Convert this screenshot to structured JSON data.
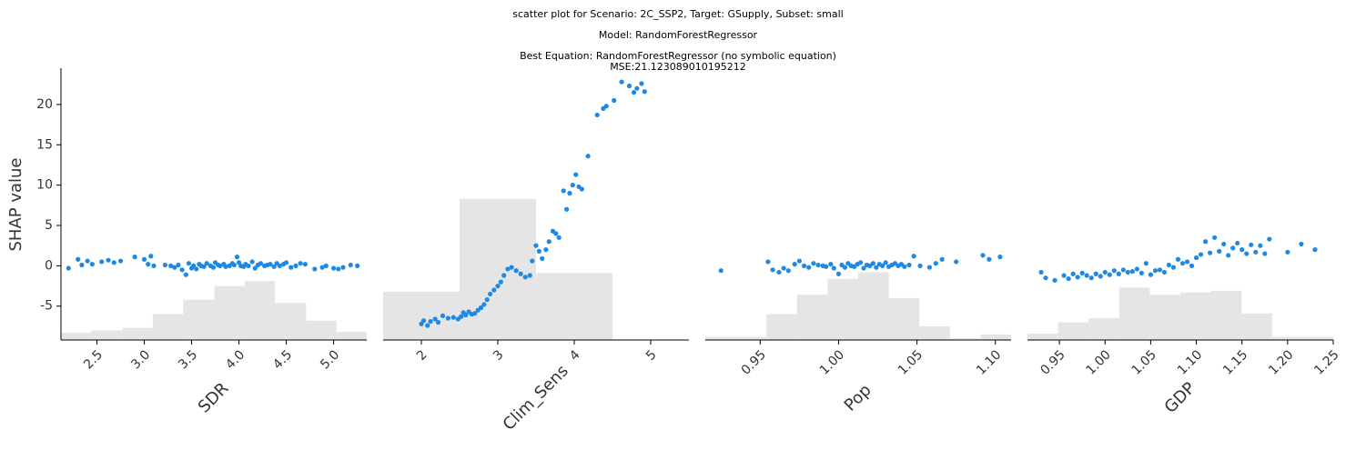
{
  "header": {
    "line1": "scatter plot for Scenario: 2C_SSP2, Target: GSupply, Subset: small",
    "line2": "Model: RandomForestRegressor",
    "line3": "Best Equation: RandomForestRegressor (no symbolic equation)",
    "line4": "MSE:21.123089010195212"
  },
  "colors": {
    "point": "#1e88e5",
    "hist": "#e5e5e5",
    "axis": "#000000"
  },
  "chart_data": {
    "type": "scatter",
    "ylabel": "SHAP value",
    "ylim": [
      -9.2,
      24.5
    ],
    "yticks": [
      -5,
      0,
      5,
      10,
      15,
      20
    ],
    "panels": [
      {
        "xlabel": "SDR",
        "xlim": [
          2.12,
          5.35
        ],
        "xticks": [
          2.5,
          3.0,
          3.5,
          4.0,
          4.5,
          5.0
        ],
        "xtick_labels": [
          "2.5",
          "3.0",
          "3.5",
          "4.0",
          "4.5",
          "5.0"
        ],
        "hist_edges": [
          2.12,
          2.44,
          2.77,
          3.09,
          3.41,
          3.74,
          4.06,
          4.38,
          4.71,
          5.03,
          5.35
        ],
        "hist_tops": [
          -8.3,
          -8.0,
          -7.7,
          -6.0,
          -4.2,
          -2.5,
          -1.9,
          -4.6,
          -6.8,
          -8.2
        ],
        "x": [
          2.2,
          2.3,
          2.34,
          2.4,
          2.45,
          2.55,
          2.62,
          2.68,
          2.75,
          2.9,
          3.0,
          3.04,
          3.07,
          3.1,
          3.22,
          3.28,
          3.32,
          3.36,
          3.4,
          3.44,
          3.47,
          3.5,
          3.52,
          3.55,
          3.58,
          3.6,
          3.63,
          3.66,
          3.7,
          3.73,
          3.75,
          3.78,
          3.8,
          3.84,
          3.86,
          3.9,
          3.93,
          3.95,
          3.98,
          4.0,
          4.02,
          4.05,
          4.07,
          4.1,
          4.14,
          4.17,
          4.2,
          4.23,
          4.27,
          4.3,
          4.33,
          4.37,
          4.4,
          4.43,
          4.47,
          4.5,
          4.55,
          4.6,
          4.65,
          4.7,
          4.8,
          4.88,
          4.92,
          5.0,
          5.05,
          5.1,
          5.18,
          5.25
        ],
        "y": [
          -0.3,
          0.8,
          0.1,
          0.6,
          0.2,
          0.5,
          0.7,
          0.4,
          0.6,
          1.1,
          0.8,
          0.2,
          1.2,
          0.0,
          0.1,
          0.0,
          -0.2,
          0.1,
          -0.5,
          -1.1,
          0.3,
          -0.3,
          0.0,
          -0.4,
          0.2,
          0.0,
          -0.1,
          0.3,
          0.0,
          -0.2,
          0.4,
          0.1,
          0.0,
          0.2,
          -0.1,
          0.0,
          0.3,
          0.1,
          1.1,
          0.4,
          0.0,
          -0.1,
          0.2,
          0.0,
          0.5,
          -0.3,
          0.1,
          0.3,
          0.0,
          0.1,
          0.2,
          -0.1,
          0.3,
          0.0,
          0.2,
          0.4,
          -0.2,
          0.0,
          0.3,
          0.2,
          -0.4,
          -0.2,
          0.0,
          -0.3,
          -0.4,
          -0.2,
          0.1,
          0.0
        ]
      },
      {
        "xlabel": "Clim_Sens",
        "xlim": [
          1.5,
          5.5
        ],
        "xticks": [
          2,
          3,
          4,
          5
        ],
        "xtick_labels": [
          "2",
          "3",
          "4",
          "5"
        ],
        "hist_edges": [
          1.5,
          2.5,
          3.5,
          4.5,
          5.5
        ],
        "hist_tops": [
          -3.2,
          8.3,
          -0.9,
          -9.2
        ],
        "x": [
          2.0,
          2.03,
          2.08,
          2.12,
          2.18,
          2.22,
          2.28,
          2.35,
          2.42,
          2.48,
          2.52,
          2.55,
          2.58,
          2.62,
          2.66,
          2.7,
          2.74,
          2.78,
          2.82,
          2.86,
          2.9,
          2.95,
          3.0,
          3.04,
          3.08,
          3.13,
          3.18,
          3.24,
          3.3,
          3.36,
          3.42,
          3.45,
          3.5,
          3.54,
          3.58,
          3.63,
          3.67,
          3.72,
          3.76,
          3.8,
          3.86,
          3.9,
          3.94,
          3.98,
          4.02,
          4.06,
          4.1,
          4.18,
          4.3,
          4.38,
          4.42,
          4.52,
          4.62,
          4.72,
          4.78,
          4.82,
          4.88,
          4.92
        ],
        "y": [
          -7.2,
          -6.8,
          -7.4,
          -6.9,
          -6.6,
          -7.0,
          -6.2,
          -6.5,
          -6.4,
          -6.6,
          -6.3,
          -5.8,
          -6.1,
          -5.7,
          -6.0,
          -5.9,
          -5.5,
          -5.2,
          -4.8,
          -4.2,
          -3.5,
          -3.0,
          -2.5,
          -2.0,
          -1.2,
          -0.4,
          -0.2,
          -0.6,
          -1.0,
          -1.4,
          -1.2,
          0.6,
          2.5,
          1.8,
          0.9,
          2.0,
          3.0,
          4.3,
          4.0,
          3.5,
          9.3,
          7.0,
          9.0,
          10.0,
          11.3,
          9.8,
          9.5,
          13.6,
          18.7,
          19.5,
          19.8,
          20.5,
          22.8,
          22.3,
          21.5,
          22.0,
          22.6,
          21.6
        ]
      },
      {
        "xlabel": "Pop",
        "xlim": [
          0.915,
          1.11
        ],
        "xticks": [
          0.95,
          1.0,
          1.05,
          1.1
        ],
        "xtick_labels": [
          "0.95",
          "1.00",
          "1.05",
          "1.10"
        ],
        "hist_edges": [
          0.915,
          0.9345,
          0.954,
          0.9735,
          0.993,
          1.0125,
          1.032,
          1.0515,
          1.071,
          1.0905,
          1.11
        ],
        "hist_tops": [
          -8.8,
          -8.8,
          -6.0,
          -3.6,
          -1.6,
          -0.8,
          -4.0,
          -7.5,
          -9.0,
          -8.5
        ],
        "x": [
          0.925,
          0.955,
          0.958,
          0.962,
          0.965,
          0.968,
          0.972,
          0.975,
          0.978,
          0.981,
          0.984,
          0.987,
          0.99,
          0.992,
          0.995,
          0.997,
          1.0,
          1.002,
          1.004,
          1.006,
          1.008,
          1.01,
          1.012,
          1.014,
          1.016,
          1.018,
          1.02,
          1.022,
          1.024,
          1.026,
          1.028,
          1.03,
          1.032,
          1.034,
          1.036,
          1.038,
          1.04,
          1.042,
          1.045,
          1.048,
          1.052,
          1.058,
          1.062,
          1.066,
          1.075,
          1.092,
          1.096,
          1.103
        ],
        "y": [
          -0.6,
          0.5,
          -0.5,
          -0.8,
          -0.3,
          -0.6,
          0.2,
          0.6,
          0.0,
          -0.2,
          0.3,
          0.1,
          0.0,
          -0.1,
          0.2,
          -0.3,
          -1.0,
          0.1,
          -0.2,
          0.3,
          0.0,
          -0.1,
          0.2,
          0.4,
          -0.3,
          0.1,
          0.0,
          0.3,
          -0.2,
          0.2,
          0.0,
          0.4,
          -0.1,
          0.1,
          0.3,
          0.0,
          0.2,
          -0.1,
          0.1,
          1.2,
          0.0,
          -0.2,
          0.3,
          0.8,
          0.5,
          1.3,
          0.8,
          1.1
        ]
      },
      {
        "xlabel": "GDP",
        "xlim": [
          0.915,
          1.25
        ],
        "xticks": [
          0.95,
          1.0,
          1.05,
          1.1,
          1.15,
          1.2,
          1.25
        ],
        "xtick_labels": [
          "0.95",
          "1.00",
          "1.05",
          "1.10",
          "1.15",
          "1.20",
          "1.25"
        ],
        "hist_edges": [
          0.915,
          0.9485,
          0.982,
          1.0155,
          1.049,
          1.0825,
          1.116,
          1.1495,
          1.183,
          1.2165,
          1.25
        ],
        "hist_tops": [
          -8.4,
          -7.0,
          -6.5,
          -2.7,
          -3.6,
          -3.3,
          -3.1,
          -5.9,
          -8.8,
          -8.8
        ],
        "x": [
          0.93,
          0.935,
          0.945,
          0.955,
          0.96,
          0.965,
          0.97,
          0.975,
          0.98,
          0.985,
          0.99,
          0.995,
          1.0,
          1.005,
          1.01,
          1.015,
          1.02,
          1.025,
          1.03,
          1.035,
          1.04,
          1.045,
          1.05,
          1.055,
          1.06,
          1.065,
          1.07,
          1.075,
          1.08,
          1.085,
          1.09,
          1.095,
          1.1,
          1.105,
          1.11,
          1.115,
          1.12,
          1.125,
          1.13,
          1.135,
          1.14,
          1.145,
          1.15,
          1.155,
          1.16,
          1.165,
          1.17,
          1.175,
          1.18,
          1.2,
          1.215,
          1.23
        ],
        "y": [
          -0.8,
          -1.5,
          -1.8,
          -1.2,
          -1.6,
          -1.0,
          -1.4,
          -0.9,
          -1.2,
          -1.5,
          -1.0,
          -1.3,
          -0.8,
          -1.1,
          -0.6,
          -1.0,
          -0.5,
          -0.8,
          -0.7,
          -0.4,
          -0.9,
          0.3,
          -1.1,
          -0.6,
          -0.5,
          -0.8,
          0.1,
          -0.2,
          0.8,
          0.3,
          0.5,
          0.0,
          1.0,
          1.4,
          3.0,
          1.6,
          3.5,
          1.8,
          2.7,
          1.3,
          2.2,
          2.8,
          2.0,
          1.5,
          2.6,
          1.7,
          2.5,
          1.5,
          3.3,
          1.7,
          2.7,
          2.0
        ]
      }
    ]
  }
}
